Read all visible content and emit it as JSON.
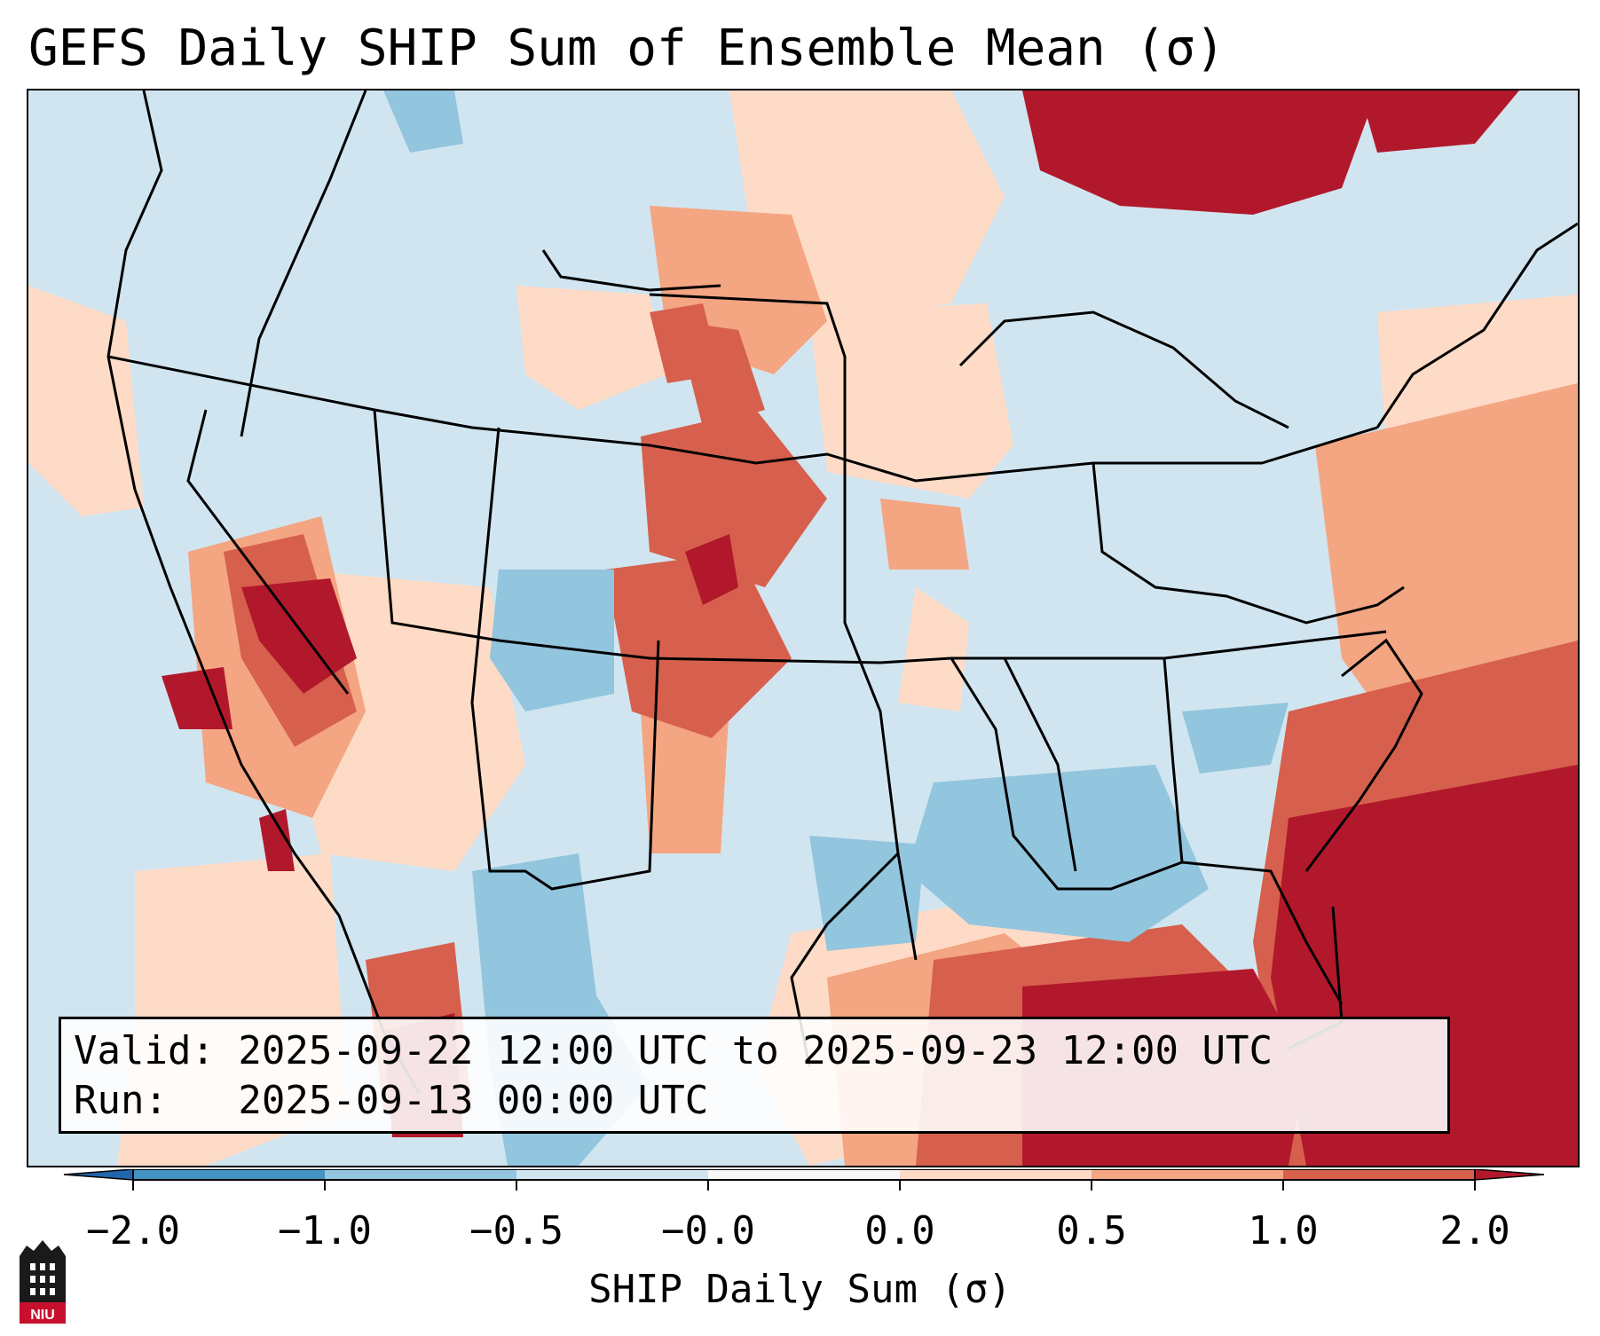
{
  "title": "GEFS Daily SHIP Sum of Ensemble Mean (σ)",
  "info": {
    "valid_line": "Valid: 2025-09-22 12:00 UTC to 2025-09-23 12:00 UTC",
    "run_line": "Run:   2025-09-13 00:00 UTC"
  },
  "colorbar": {
    "label": "SHIP Daily Sum (σ)",
    "ticks": [
      "−2.0",
      "−1.0",
      "−0.5",
      "−0.0",
      "0.0",
      "0.5",
      "1.0",
      "2.0"
    ],
    "colors": [
      "#4393c3",
      "#92c5de",
      "#d1e5f0",
      "#f7f7f7",
      "#fddbc7",
      "#f4a582",
      "#d6604d",
      "#b2182b"
    ],
    "under_color": "#2166ac",
    "over_color": "#b2182b"
  },
  "logo": {
    "text": "NIU"
  }
}
